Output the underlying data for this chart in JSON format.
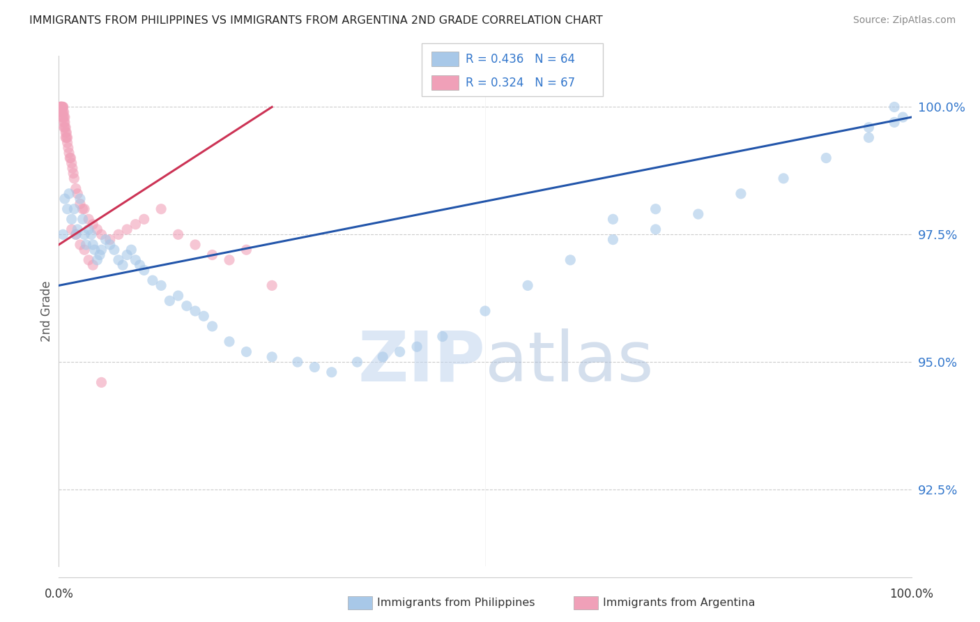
{
  "title": "IMMIGRANTS FROM PHILIPPINES VS IMMIGRANTS FROM ARGENTINA 2ND GRADE CORRELATION CHART",
  "source": "Source: ZipAtlas.com",
  "ylabel": "2nd Grade",
  "ytick_labels": [
    "100.0%",
    "97.5%",
    "95.0%",
    "92.5%"
  ],
  "ytick_values": [
    1.0,
    0.975,
    0.95,
    0.925
  ],
  "legend_label_blue": "R = 0.436   N = 64",
  "legend_label_pink": "R = 0.324   N = 67",
  "watermark_zip": "ZIP",
  "watermark_atlas": "atlas",
  "philippines_color": "#a8c8e8",
  "argentina_color": "#f0a0b8",
  "philippines_line_color": "#2255aa",
  "argentina_line_color": "#cc3355",
  "grid_color": "#cccccc",
  "title_color": "#222222",
  "ytick_color": "#3377cc",
  "source_color": "#888888",
  "legend_text_color": "#3377cc",
  "blue_scatter_x": [
    0.005,
    0.007,
    0.01,
    0.012,
    0.015,
    0.018,
    0.02,
    0.022,
    0.025,
    0.028,
    0.03,
    0.032,
    0.035,
    0.038,
    0.04,
    0.042,
    0.045,
    0.048,
    0.05,
    0.055,
    0.06,
    0.065,
    0.07,
    0.075,
    0.08,
    0.085,
    0.09,
    0.095,
    0.1,
    0.11,
    0.12,
    0.13,
    0.14,
    0.15,
    0.16,
    0.17,
    0.18,
    0.2,
    0.22,
    0.25,
    0.28,
    0.3,
    0.32,
    0.35,
    0.38,
    0.4,
    0.42,
    0.45,
    0.5,
    0.55,
    0.6,
    0.65,
    0.7,
    0.75,
    0.8,
    0.85,
    0.9,
    0.95,
    0.98,
    0.99,
    0.65,
    0.7,
    0.95,
    0.98
  ],
  "blue_scatter_y": [
    0.975,
    0.982,
    0.98,
    0.983,
    0.978,
    0.98,
    0.975,
    0.976,
    0.982,
    0.978,
    0.975,
    0.973,
    0.976,
    0.975,
    0.973,
    0.972,
    0.97,
    0.971,
    0.972,
    0.974,
    0.973,
    0.972,
    0.97,
    0.969,
    0.971,
    0.972,
    0.97,
    0.969,
    0.968,
    0.966,
    0.965,
    0.962,
    0.963,
    0.961,
    0.96,
    0.959,
    0.957,
    0.954,
    0.952,
    0.951,
    0.95,
    0.949,
    0.948,
    0.95,
    0.951,
    0.952,
    0.953,
    0.955,
    0.96,
    0.965,
    0.97,
    0.974,
    0.976,
    0.979,
    0.983,
    0.986,
    0.99,
    0.994,
    0.997,
    0.998,
    0.978,
    0.98,
    0.996,
    1.0
  ],
  "pink_scatter_x": [
    0.002,
    0.002,
    0.002,
    0.002,
    0.003,
    0.003,
    0.003,
    0.003,
    0.003,
    0.004,
    0.004,
    0.004,
    0.004,
    0.005,
    0.005,
    0.005,
    0.005,
    0.006,
    0.006,
    0.006,
    0.006,
    0.007,
    0.007,
    0.007,
    0.008,
    0.008,
    0.008,
    0.009,
    0.009,
    0.01,
    0.01,
    0.011,
    0.012,
    0.013,
    0.014,
    0.015,
    0.016,
    0.017,
    0.018,
    0.02,
    0.022,
    0.025,
    0.028,
    0.03,
    0.035,
    0.04,
    0.045,
    0.05,
    0.06,
    0.07,
    0.08,
    0.09,
    0.1,
    0.12,
    0.14,
    0.16,
    0.18,
    0.2,
    0.22,
    0.25,
    0.015,
    0.02,
    0.025,
    0.03,
    0.035,
    0.04,
    0.05
  ],
  "pink_scatter_y": [
    1.0,
    1.0,
    1.0,
    1.0,
    1.0,
    1.0,
    1.0,
    1.0,
    0.999,
    1.0,
    1.0,
    0.999,
    0.998,
    1.0,
    1.0,
    0.999,
    0.998,
    0.999,
    0.998,
    0.997,
    0.996,
    0.998,
    0.997,
    0.996,
    0.996,
    0.995,
    0.994,
    0.995,
    0.994,
    0.994,
    0.993,
    0.992,
    0.991,
    0.99,
    0.99,
    0.989,
    0.988,
    0.987,
    0.986,
    0.984,
    0.983,
    0.981,
    0.98,
    0.98,
    0.978,
    0.977,
    0.976,
    0.975,
    0.974,
    0.975,
    0.976,
    0.977,
    0.978,
    0.98,
    0.975,
    0.973,
    0.971,
    0.97,
    0.972,
    0.965,
    0.976,
    0.975,
    0.973,
    0.972,
    0.97,
    0.969,
    0.946
  ],
  "blue_line_x": [
    0.0,
    1.0
  ],
  "blue_line_y": [
    0.965,
    0.998
  ],
  "pink_line_x": [
    0.0,
    0.25
  ],
  "pink_line_y": [
    0.973,
    1.0
  ],
  "xlim": [
    0.0,
    1.0
  ],
  "ylim": [
    0.91,
    1.01
  ]
}
